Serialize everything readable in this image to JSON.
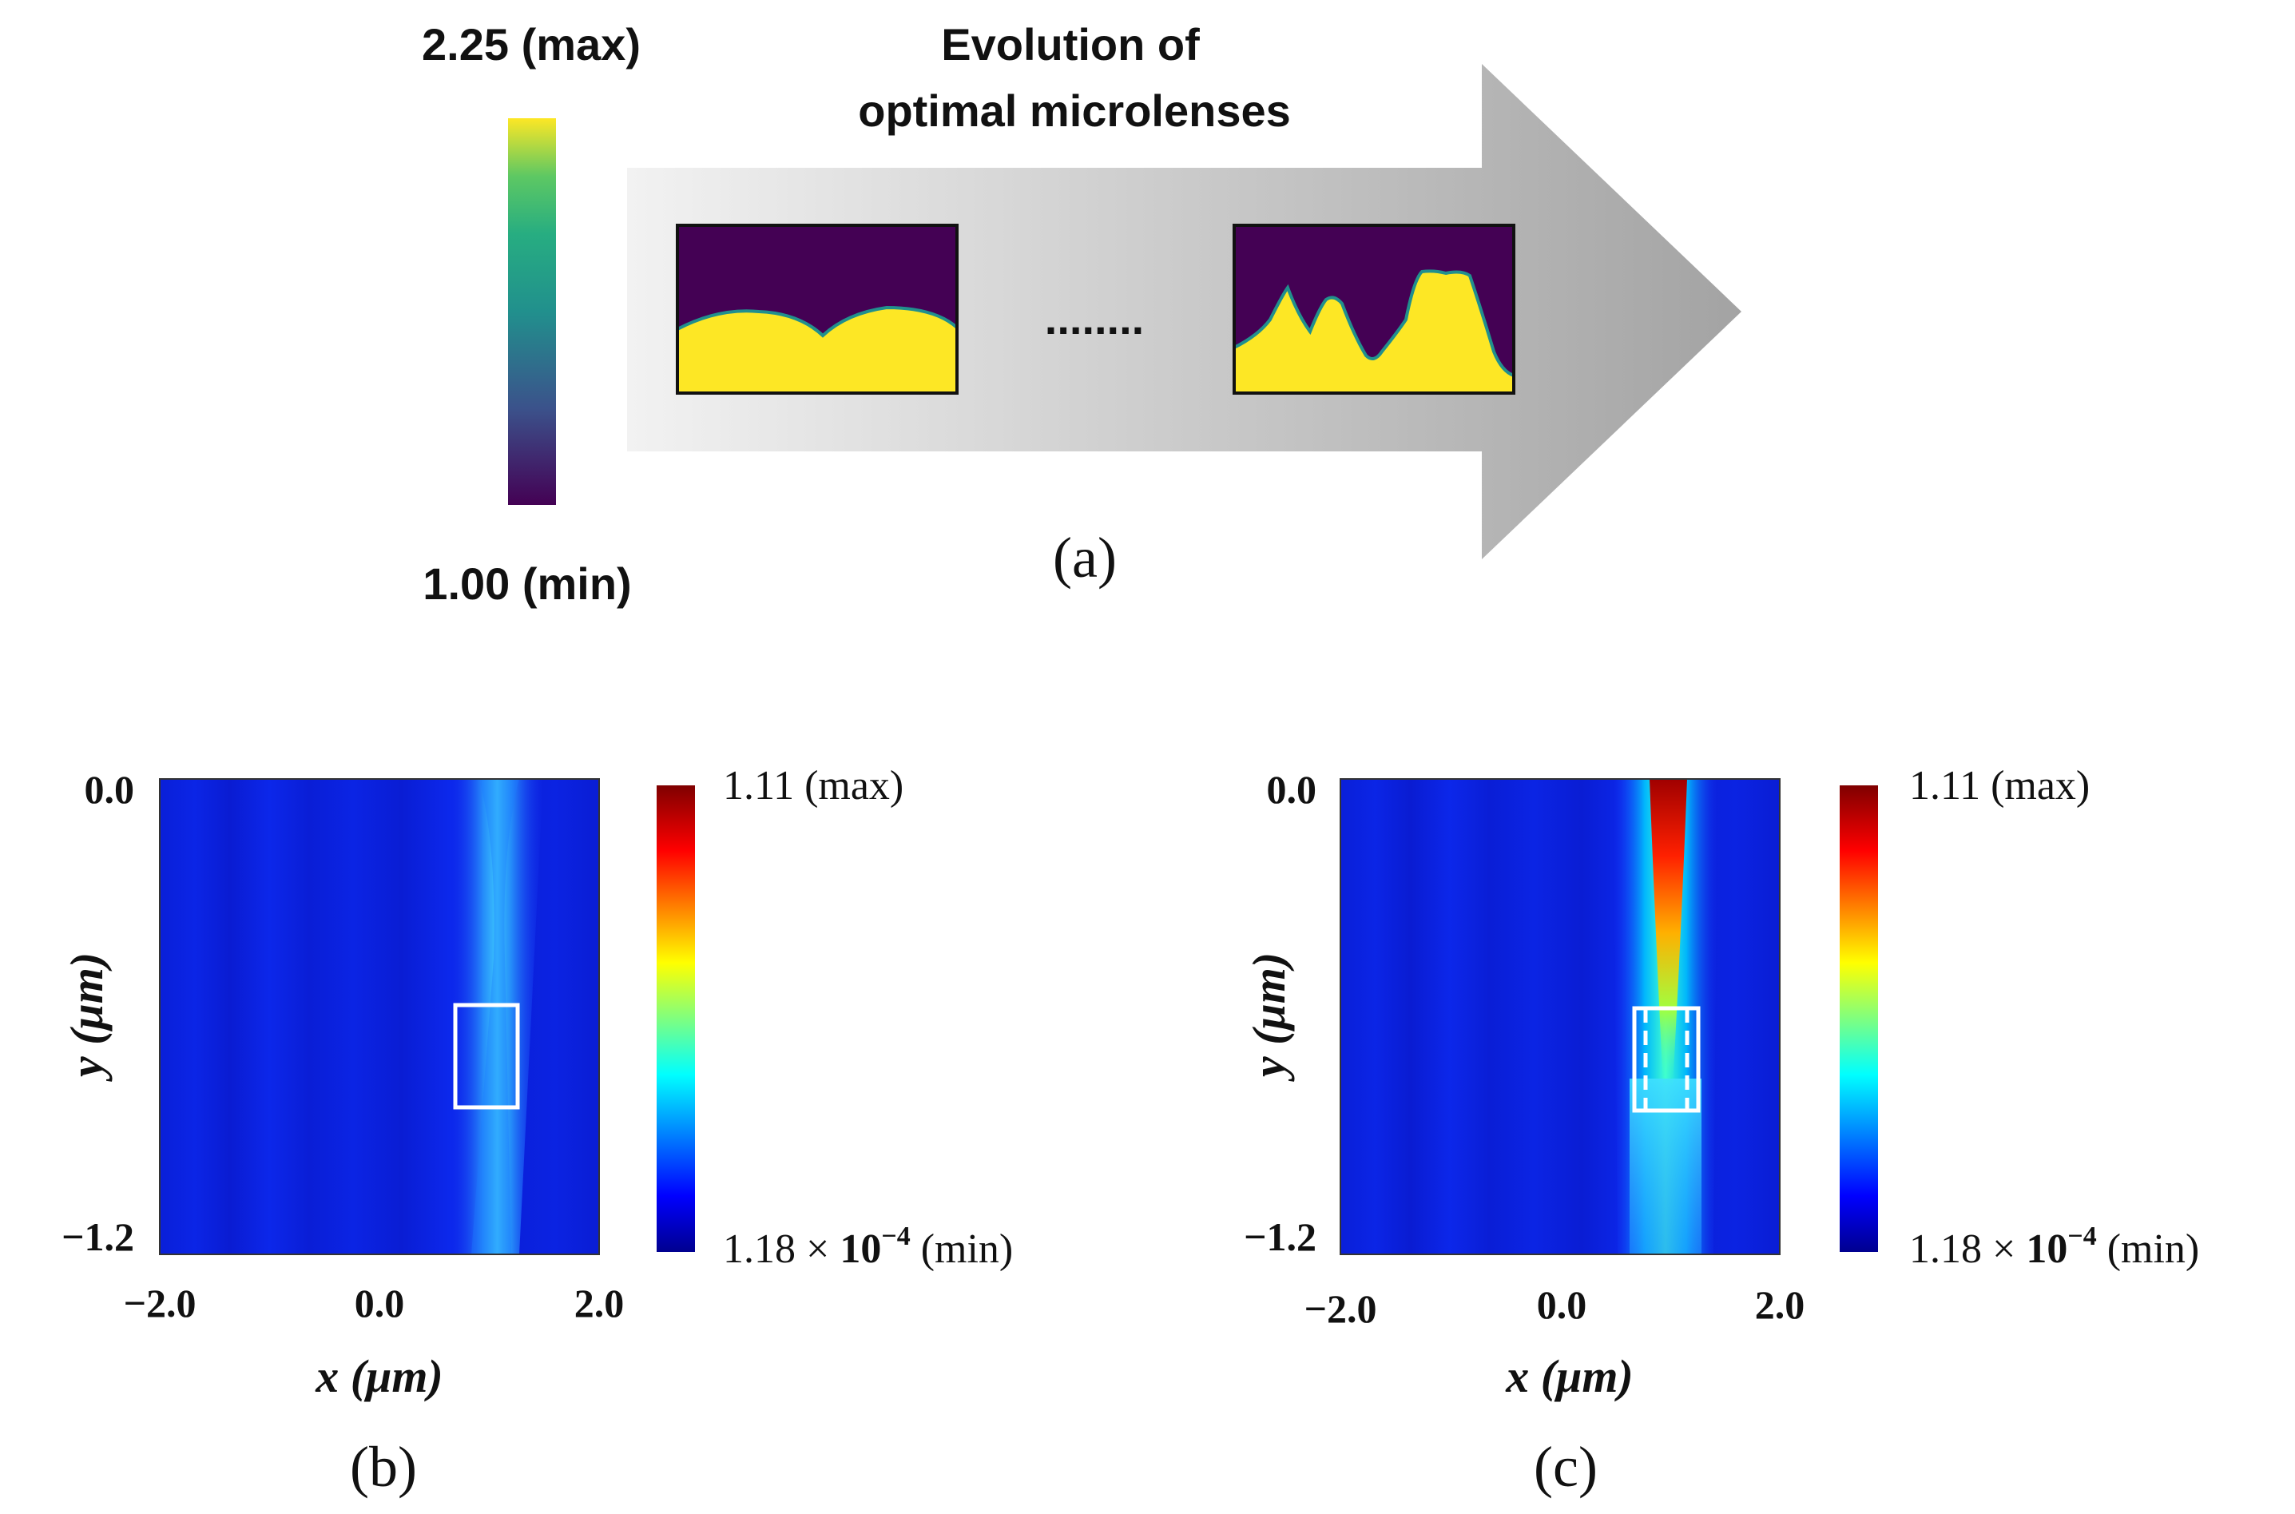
{
  "panel_a": {
    "colorbar_max_label": "2.25 (max)",
    "colorbar_min_label": "1.00 (min)",
    "arrow_title_line1": "Evolution of",
    "arrow_title_line2": "optimal microlenses",
    "ellipsis": "........",
    "caption": "(a)",
    "colormap_stops": [
      "#440154",
      "#3b528b",
      "#21908d",
      "#27ad81",
      "#5dc863",
      "#fde725"
    ]
  },
  "panel_b": {
    "caption": "(b)",
    "xlabel": "x (μm)",
    "ylabel": "y (μm)",
    "x_ticks": [
      "−2.0",
      "0.0",
      "2.0"
    ],
    "y_ticks": [
      "0.0",
      "−1.2"
    ],
    "colorbar_max_label": "1.11 (max)",
    "colorbar_min_prefix": "1.18 × ",
    "colorbar_min_base": "10",
    "colorbar_min_exponent": "−4",
    "colorbar_min_suffix": " (min)"
  },
  "panel_c": {
    "caption": "(c)",
    "xlabel": "x (μm)",
    "ylabel": "y (μm)",
    "x_ticks": [
      "−2.0",
      "0.0",
      "2.0"
    ],
    "y_ticks": [
      "0.0",
      "−1.2"
    ],
    "colorbar_max_label": "1.11 (max)",
    "colorbar_min_prefix": "1.18 × ",
    "colorbar_min_base": "10",
    "colorbar_min_exponent": "−4",
    "colorbar_min_suffix": " (min)"
  },
  "jet_colormap_stops": [
    "#00008f",
    "#0000ff",
    "#00ffff",
    "#7fff7f",
    "#ffff00",
    "#ff0000",
    "#7f0000"
  ]
}
